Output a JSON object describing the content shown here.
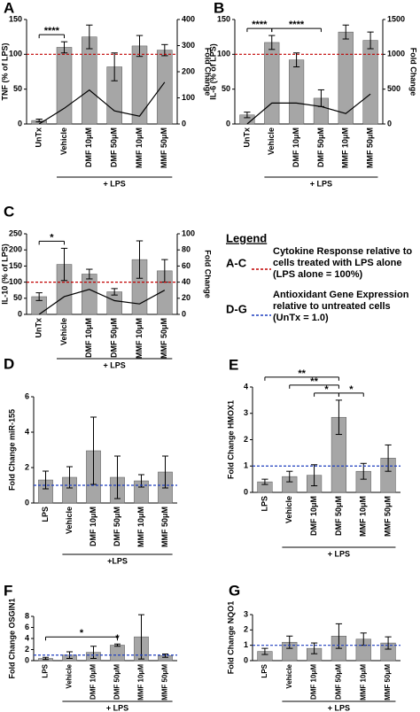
{
  "chart_data": [
    {
      "panel": "A",
      "type": "bar",
      "ylabel": "TNF (% of LPS)",
      "y2label": "Fold Change",
      "categories": [
        "UnTx",
        "Vehicle",
        "DMF 10μM",
        "DMF 50μM",
        "MMF 10μM",
        "MMF 50μM"
      ],
      "values": [
        5,
        110,
        125,
        82,
        112,
        106
      ],
      "errors": [
        2,
        8,
        17,
        20,
        15,
        8
      ],
      "color": "#a6a6a6",
      "ylim": [
        0,
        150
      ],
      "yticks": [
        0,
        50,
        100,
        150
      ],
      "y2lim": [
        0,
        400
      ],
      "y2ticks": [
        0,
        100,
        200,
        300,
        400
      ],
      "line": {
        "values": [
          0,
          60,
          130,
          50,
          30,
          160
        ],
        "axis": "y2",
        "color": "#000000"
      },
      "reference_line": {
        "value": 100,
        "color": "#c00000"
      },
      "annotations": [
        {
          "label": "****",
          "from": "UnTx",
          "to": "Vehicle"
        }
      ],
      "group": {
        "label": "+ LPS",
        "from": "Vehicle",
        "to": "MMF 50μM"
      }
    },
    {
      "panel": "B",
      "type": "bar",
      "ylabel": "IL-6 (% of LPS)",
      "y2label": "Fold Change",
      "categories": [
        "UnTx",
        "Vehicle",
        "DMF 10μM",
        "DMF 50μM",
        "MMF 10μM",
        "MMF 50μM"
      ],
      "values": [
        13,
        117,
        92,
        37,
        132,
        120
      ],
      "errors": [
        4,
        10,
        10,
        12,
        10,
        12
      ],
      "color": "#a6a6a6",
      "ylim": [
        0,
        150
      ],
      "yticks": [
        0,
        50,
        100,
        150
      ],
      "y2lim": [
        0,
        1500
      ],
      "y2ticks": [
        0,
        500,
        1000,
        1500
      ],
      "line": {
        "values": [
          0,
          300,
          300,
          250,
          150,
          430
        ],
        "axis": "y2",
        "color": "#000000"
      },
      "reference_line": {
        "value": 100,
        "color": "#c00000"
      },
      "annotations": [
        {
          "label": "****",
          "from": "UnTx",
          "to": "Vehicle"
        },
        {
          "label": "****",
          "from": "Vehicle",
          "to": "DMF 50μM"
        }
      ],
      "group": {
        "label": "+ LPS",
        "from": "Vehicle",
        "to": "MMF 50μM"
      }
    },
    {
      "panel": "C",
      "type": "bar",
      "ylabel": "IL-10 (% of LPS)",
      "y2label": "Fold Change",
      "categories": [
        "UnTx",
        "Vehicle",
        "DMF 10μM",
        "DMF 50μM",
        "MMF 10μM",
        "MMF 50μM"
      ],
      "values": [
        55,
        155,
        125,
        70,
        170,
        135
      ],
      "errors": [
        12,
        50,
        15,
        10,
        58,
        35
      ],
      "color": "#a6a6a6",
      "ylim": [
        0,
        250
      ],
      "yticks": [
        0,
        50,
        100,
        150,
        200,
        250
      ],
      "y2lim": [
        0,
        100
      ],
      "y2ticks": [
        0,
        20,
        40,
        60,
        80,
        100
      ],
      "line": {
        "values": [
          0,
          22,
          31,
          17,
          13,
          30
        ],
        "axis": "y2",
        "color": "#000000"
      },
      "reference_line": {
        "value": 100,
        "color": "#c00000"
      },
      "annotations": [
        {
          "label": "*",
          "from": "UnTx",
          "to": "Vehicle"
        }
      ],
      "group": {
        "label": "+ LPS",
        "from": "Vehicle",
        "to": "MMF 50μM"
      }
    },
    {
      "panel": "D",
      "type": "bar",
      "ylabel": "Fold Change miR-155",
      "categories": [
        "LPS",
        "Vehicle",
        "DMF 10μM",
        "DMF 50μM",
        "MMF 10μM",
        "MMF 50μM"
      ],
      "values": [
        1.3,
        1.45,
        2.95,
        1.45,
        1.25,
        1.75
      ],
      "errors": [
        0.5,
        0.6,
        1.9,
        1.2,
        0.35,
        0.9
      ],
      "color": "#a6a6a6",
      "ylim": [
        0,
        6
      ],
      "yticks": [
        0,
        2,
        4,
        6
      ],
      "reference_line": {
        "value": 1,
        "color": "#1f3fbf"
      },
      "annotations": [],
      "group": {
        "label": "+LPS",
        "from": "Vehicle",
        "to": "MMF 50μM"
      }
    },
    {
      "panel": "E",
      "type": "bar",
      "ylabel": "Fold Change HMOX1",
      "categories": [
        "LPS",
        "Vehicle",
        "DMF 10μM",
        "DMF 50μM",
        "MMF 10μM",
        "MMF 50μM"
      ],
      "values": [
        0.4,
        0.6,
        0.65,
        2.85,
        0.8,
        1.3
      ],
      "errors": [
        0.1,
        0.2,
        0.4,
        0.65,
        0.3,
        0.5
      ],
      "color": "#a6a6a6",
      "ylim": [
        0,
        4
      ],
      "yticks": [
        0,
        1,
        2,
        3,
        4
      ],
      "reference_line": {
        "value": 1,
        "color": "#1f3fbf"
      },
      "annotations": [
        {
          "label": "**",
          "from": "LPS",
          "to": "DMF 50μM"
        },
        {
          "label": "**",
          "from": "Vehicle",
          "to": "DMF 50μM"
        },
        {
          "label": "*",
          "from": "DMF 10μM",
          "to": "DMF 50μM"
        },
        {
          "label": "*",
          "from": "DMF 50μM",
          "to": "MMF 10μM"
        }
      ],
      "group": {
        "label": "+ LPS",
        "from": "Vehicle",
        "to": "MMF 50μM"
      }
    },
    {
      "panel": "F",
      "type": "bar",
      "ylabel": "Fold  Change OSGIN1",
      "categories": [
        "LPS",
        "Vehicle",
        "DMF 10μM",
        "DMF 50μM",
        "MMF 10μM",
        "MMF 50μM"
      ],
      "values": [
        0.4,
        1.0,
        1.5,
        2.8,
        4.3,
        0.9
      ],
      "errors": [
        0.2,
        0.6,
        1.1,
        0.2,
        4.0,
        0.3
      ],
      "color": "#a6a6a6",
      "ylim": [
        0,
        8
      ],
      "yticks": [
        0,
        2,
        4,
        6,
        8
      ],
      "reference_line": {
        "value": 1,
        "color": "#1f3fbf"
      },
      "annotations": [
        {
          "label": "*",
          "from": "LPS",
          "to": "DMF 50μM"
        },
        {
          "label": "*",
          "from": "DMF 50μM",
          "to": "DMF 50μM"
        }
      ],
      "group": {
        "label": "+ LPS",
        "from": "Vehicle",
        "to": "MMF 50μM"
      }
    },
    {
      "panel": "G",
      "type": "bar",
      "ylabel": "Fold  Change NQO1",
      "categories": [
        "LPS",
        "Vehicle",
        "DMF 10μM",
        "DMF 50μM",
        "MMF 10μM",
        "MMF 50μM"
      ],
      "values": [
        0.6,
        1.2,
        0.8,
        1.6,
        1.4,
        1.15
      ],
      "errors": [
        0.2,
        0.4,
        0.35,
        0.8,
        0.4,
        0.4
      ],
      "color": "#a6a6a6",
      "ylim": [
        0,
        3
      ],
      "yticks": [
        0,
        1,
        2,
        3
      ],
      "reference_line": {
        "value": 1,
        "color": "#1f3fbf"
      },
      "annotations": [],
      "group": {
        "label": "+ LPS",
        "from": "Vehicle",
        "to": "MMF 50μM"
      }
    }
  ],
  "legend": {
    "title": "Legend",
    "entries": [
      {
        "label": "A-C",
        "text": "Cytokine Response relative to cells treated with LPS alone (LPS alone = 100%)",
        "color": "#c00000"
      },
      {
        "label": "D-G",
        "text": "Antioxidant Gene Expression relative to untreated cells (UnTx = 1.0)",
        "color": "#1f3fbf"
      }
    ]
  }
}
